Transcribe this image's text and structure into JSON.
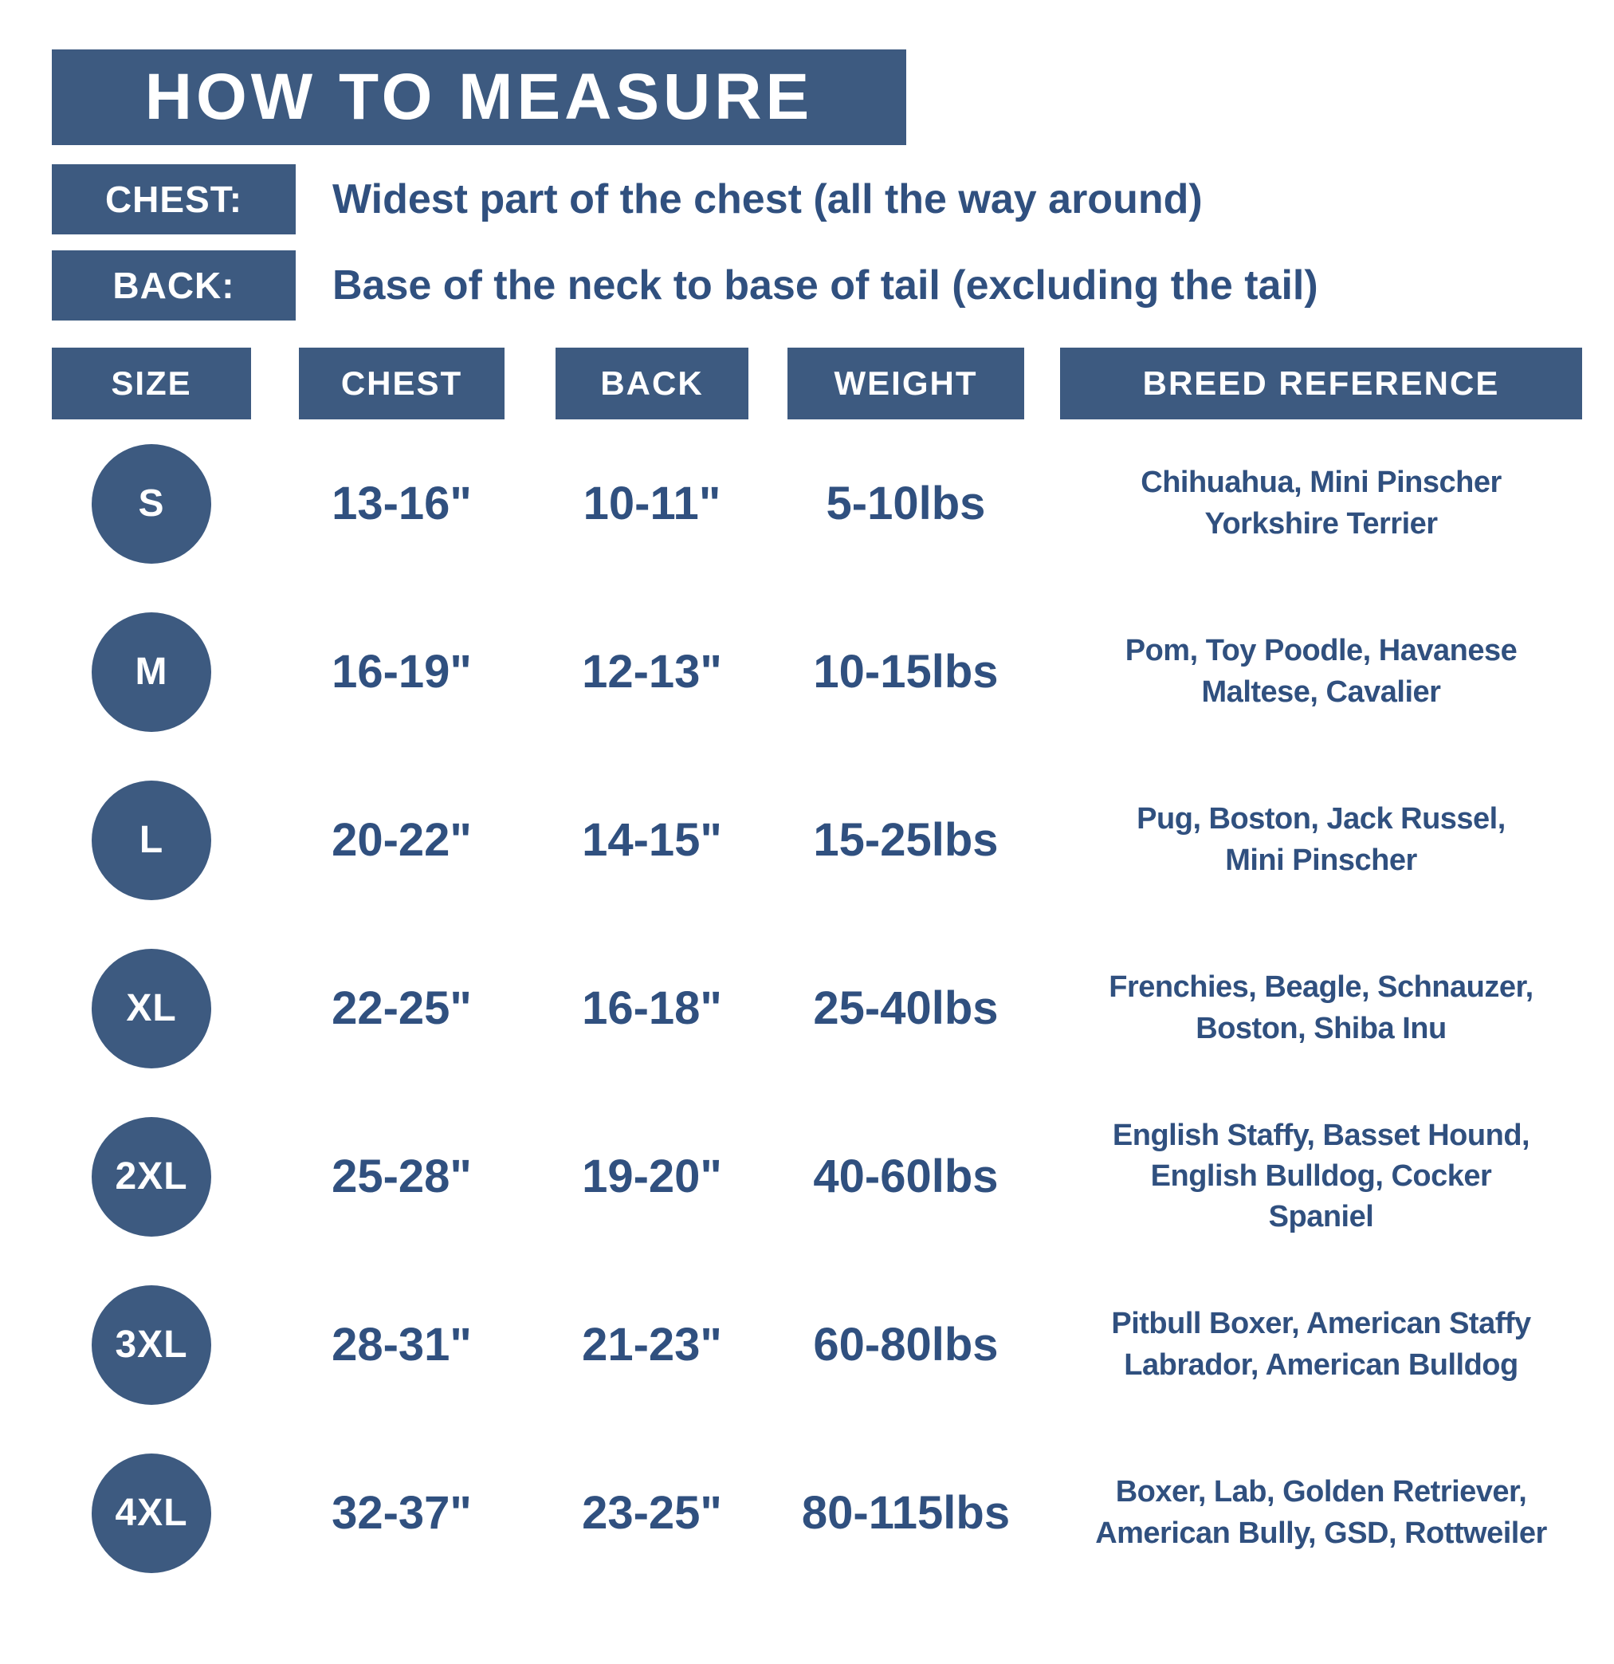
{
  "colors": {
    "primary_blue": "#3d5a80",
    "text_blue": "#30507f",
    "background": "#ffffff"
  },
  "title": "HOW TO MEASURE",
  "measure_guide": [
    {
      "label": "CHEST:",
      "description": "Widest part of the chest (all the way around)"
    },
    {
      "label": "BACK:",
      "description": "Base of the neck to base of tail (excluding the tail)"
    }
  ],
  "table": {
    "columns": [
      "SIZE",
      "CHEST",
      "BACK",
      "WEIGHT",
      "BREED REFERENCE"
    ],
    "rows": [
      {
        "size": "S",
        "chest": "13-16\"",
        "back": "10-11\"",
        "weight": "5-10lbs",
        "breeds": "Chihuahua, Mini Pinscher\nYorkshire Terrier"
      },
      {
        "size": "M",
        "chest": "16-19\"",
        "back": "12-13\"",
        "weight": "10-15lbs",
        "breeds": "Pom, Toy Poodle, Havanese\nMaltese, Cavalier"
      },
      {
        "size": "L",
        "chest": "20-22\"",
        "back": "14-15\"",
        "weight": "15-25lbs",
        "breeds": "Pug, Boston, Jack Russel,\nMini Pinscher"
      },
      {
        "size": "XL",
        "chest": "22-25\"",
        "back": "16-18\"",
        "weight": "25-40lbs",
        "breeds": "Frenchies, Beagle, Schnauzer,\nBoston, Shiba Inu"
      },
      {
        "size": "2XL",
        "chest": "25-28\"",
        "back": "19-20\"",
        "weight": "40-60lbs",
        "breeds": "English Staffy, Basset Hound,\nEnglish Bulldog, Cocker\nSpaniel"
      },
      {
        "size": "3XL",
        "chest": "28-31\"",
        "back": "21-23\"",
        "weight": "60-80lbs",
        "breeds": "Pitbull Boxer, American Staffy\nLabrador, American Bulldog"
      },
      {
        "size": "4XL",
        "chest": "32-37\"",
        "back": "23-25\"",
        "weight": "80-115lbs",
        "breeds": "Boxer, Lab, Golden Retriever,\nAmerican Bully, GSD, Rottweiler"
      }
    ]
  }
}
